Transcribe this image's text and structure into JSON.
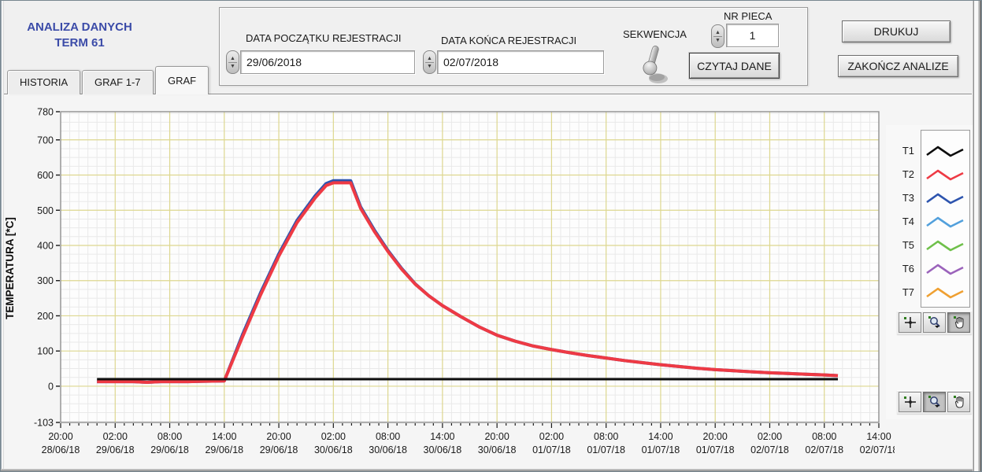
{
  "window": {
    "title_line1": "ANALIZA DANYCH",
    "title_line2": "TERM 61"
  },
  "tabs": [
    {
      "label": "HISTORIA",
      "active": false
    },
    {
      "label": "GRAF 1-7",
      "active": false
    },
    {
      "label": "GRAF",
      "active": true
    }
  ],
  "controls": {
    "start_date_label": "DATA POCZĄTKU REJESTRACJI",
    "start_date_value": "29/06/2018",
    "end_date_label": "DATA KOŃCA REJESTRACJI",
    "end_date_value": "02/07/2018",
    "sequence_label": "SEKWENCJA",
    "furnace_label": "NR PIECA",
    "furnace_value": "1",
    "read_button": "CZYTAJ  DANE",
    "print_button": "DRUKUJ",
    "exit_button": "ZAKOŃCZ ANALIZE"
  },
  "chart_data": {
    "type": "line",
    "title": "",
    "ylabel": "TEMPERATURA [*C]",
    "ylim": [
      -103,
      780
    ],
    "y_major_ticks": [
      780,
      700,
      600,
      500,
      400,
      300,
      200,
      100,
      0,
      -103
    ],
    "x_axis": {
      "start": "28/06/18 20:00",
      "end": "02/07/18 14:00",
      "hours_span": 90,
      "major_tick_hours": 6,
      "minor_tick_hours": 1
    },
    "x_tick_times": [
      "20:00",
      "02:00",
      "08:00",
      "14:00",
      "20:00",
      "02:00",
      "08:00",
      "14:00",
      "20:00",
      "02:00",
      "08:00",
      "14:00",
      "20:00",
      "02:00",
      "08:00",
      "14:00"
    ],
    "x_tick_dates": [
      "28/06/18",
      "29/06/18",
      "29/06/18",
      "29/06/18",
      "29/06/18",
      "30/06/18",
      "30/06/18",
      "30/06/18",
      "30/06/18",
      "01/07/18",
      "01/07/18",
      "01/07/18",
      "01/07/18",
      "02/07/18",
      "02/07/18",
      "02/07/18"
    ],
    "grid": {
      "major_color": "#ddd78f",
      "minor_color": "#e9e9e9",
      "y_minor_step": 25,
      "y_major_step": 100
    },
    "legend_position": "right",
    "series": [
      {
        "name": "T1",
        "color": "#0d0d0d",
        "width": 3,
        "points": [
          [
            4,
            20
          ],
          [
            85.5,
            20
          ]
        ]
      },
      {
        "name": "T2",
        "color": "#ee3a44",
        "width": 4,
        "points": [
          [
            4,
            13
          ],
          [
            8,
            13
          ],
          [
            9.5,
            11
          ],
          [
            11,
            13
          ],
          [
            14,
            13
          ],
          [
            18,
            15
          ],
          [
            20,
            140
          ],
          [
            22,
            260
          ],
          [
            24,
            370
          ],
          [
            26,
            465
          ],
          [
            28,
            535
          ],
          [
            29.2,
            570
          ],
          [
            30,
            578
          ],
          [
            31.9,
            578
          ],
          [
            33,
            505
          ],
          [
            34.5,
            440
          ],
          [
            36,
            383
          ],
          [
            37.5,
            333
          ],
          [
            39,
            290
          ],
          [
            40.5,
            257
          ],
          [
            42,
            229
          ],
          [
            44,
            198
          ],
          [
            46,
            169
          ],
          [
            48,
            145
          ],
          [
            50,
            128
          ],
          [
            52,
            114
          ],
          [
            54,
            104
          ],
          [
            56,
            95
          ],
          [
            58,
            87
          ],
          [
            60,
            80
          ],
          [
            62,
            73
          ],
          [
            64,
            67
          ],
          [
            66,
            61
          ],
          [
            68,
            56
          ],
          [
            70,
            51
          ],
          [
            72,
            47
          ],
          [
            74,
            44
          ],
          [
            76,
            41
          ],
          [
            78,
            38
          ],
          [
            80,
            36
          ],
          [
            82,
            34
          ],
          [
            84,
            32
          ],
          [
            85.5,
            30
          ]
        ]
      },
      {
        "name": "T3",
        "color": "#2d54ae",
        "width": 4,
        "note": "overlaps T2, visible as fringe on rise and plateau",
        "points": [
          [
            4,
            13
          ],
          [
            8,
            13
          ],
          [
            9.5,
            11
          ],
          [
            11,
            13
          ],
          [
            14,
            13
          ],
          [
            18,
            15
          ],
          [
            20,
            146
          ],
          [
            22,
            266
          ],
          [
            24,
            376
          ],
          [
            26,
            471
          ],
          [
            28,
            541
          ],
          [
            29.2,
            576
          ],
          [
            30,
            584
          ],
          [
            31.9,
            584
          ],
          [
            33,
            509
          ],
          [
            34.5,
            444
          ],
          [
            36,
            386
          ],
          [
            37.5,
            335
          ],
          [
            39,
            291
          ],
          [
            40.5,
            257
          ],
          [
            42,
            229
          ],
          [
            44,
            198
          ],
          [
            46,
            169
          ],
          [
            48,
            145
          ],
          [
            50,
            128
          ],
          [
            52,
            114
          ],
          [
            54,
            104
          ],
          [
            56,
            95
          ],
          [
            58,
            87
          ],
          [
            60,
            80
          ],
          [
            62,
            73
          ],
          [
            64,
            67
          ],
          [
            66,
            61
          ],
          [
            68,
            56
          ],
          [
            70,
            51
          ],
          [
            72,
            47
          ],
          [
            74,
            44
          ],
          [
            76,
            41
          ],
          [
            78,
            38
          ],
          [
            80,
            36
          ],
          [
            82,
            34
          ],
          [
            84,
            32
          ],
          [
            85.5,
            30
          ]
        ]
      },
      {
        "name": "T4",
        "color": "#52a0dc",
        "width": 3,
        "note": "hidden behind T2",
        "points": []
      },
      {
        "name": "T5",
        "color": "#6fc04a",
        "width": 3,
        "note": "hidden behind T2",
        "points": []
      },
      {
        "name": "T6",
        "color": "#9b63bb",
        "width": 3,
        "note": "hidden behind T2",
        "points": []
      },
      {
        "name": "T7",
        "color": "#efa032",
        "width": 3,
        "note": "hidden behind T2",
        "points": []
      }
    ]
  }
}
